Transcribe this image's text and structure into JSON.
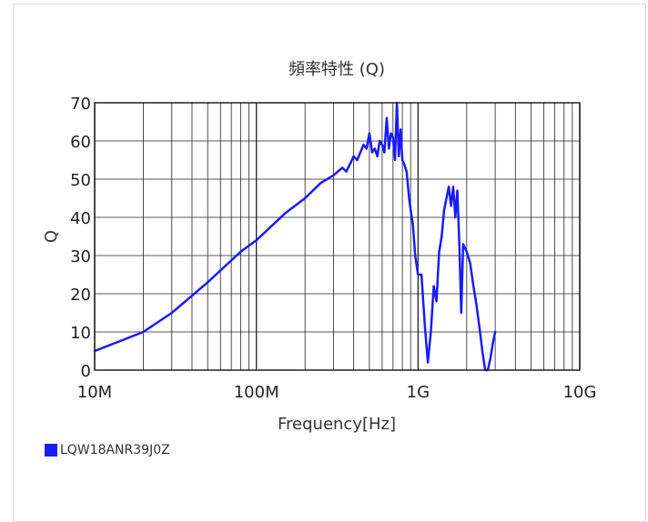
{
  "chart_data": {
    "type": "line",
    "title": "頻率特性 (Q)",
    "xlabel": "Frequency[Hz]",
    "ylabel": "Q",
    "x_scale": "log",
    "xlim_hz": [
      10000000,
      10000000000
    ],
    "ylim": [
      0,
      70
    ],
    "x_ticks": [
      {
        "value": 10000000,
        "label": "10M"
      },
      {
        "value": 100000000,
        "label": "100M"
      },
      {
        "value": 1000000000,
        "label": "1G"
      },
      {
        "value": 10000000000,
        "label": "10G"
      }
    ],
    "y_ticks": [
      0,
      10,
      20,
      30,
      40,
      50,
      60,
      70
    ],
    "grid": true,
    "legend_position": "bottom-left",
    "series": [
      {
        "name": "LQW18ANR39J0Z",
        "color": "#1a1aff",
        "x_hz": [
          10000000,
          20000000,
          30000000,
          50000000,
          80000000,
          100000000,
          150000000,
          200000000,
          250000000,
          300000000,
          340000000,
          360000000,
          380000000,
          400000000,
          420000000,
          440000000,
          460000000,
          480000000,
          500000000,
          520000000,
          540000000,
          560000000,
          580000000,
          600000000,
          620000000,
          640000000,
          660000000,
          680000000,
          700000000,
          720000000,
          740000000,
          760000000,
          780000000,
          800000000,
          820000000,
          850000000,
          880000000,
          900000000,
          930000000,
          960000000,
          1000000000,
          1050000000,
          1100000000,
          1150000000,
          1200000000,
          1250000000,
          1300000000,
          1350000000,
          1400000000,
          1450000000,
          1500000000,
          1550000000,
          1600000000,
          1650000000,
          1700000000,
          1750000000,
          1800000000,
          1850000000,
          1900000000,
          2000000000,
          2100000000,
          2200000000,
          2300000000,
          2400000000,
          2500000000,
          2600000000,
          2700000000,
          2800000000,
          2900000000,
          3000000000
        ],
        "q": [
          5,
          10,
          15,
          23,
          31,
          34,
          41,
          45,
          49,
          51,
          53,
          52,
          54,
          56,
          55,
          57,
          59,
          58,
          62,
          57,
          58,
          56,
          60,
          59,
          57,
          66,
          58,
          62,
          61,
          55,
          70,
          56,
          63,
          55,
          54,
          52,
          45,
          42,
          38,
          30,
          25,
          25,
          12,
          2,
          10,
          22,
          18,
          31,
          35,
          42,
          45,
          48,
          43,
          48,
          40,
          47,
          33,
          15,
          33,
          31,
          28,
          22,
          17,
          11,
          5,
          0,
          0,
          3,
          7,
          10
        ]
      }
    ]
  }
}
